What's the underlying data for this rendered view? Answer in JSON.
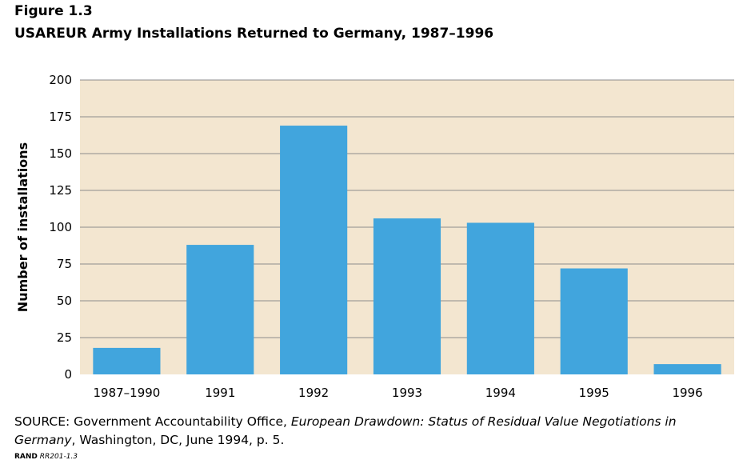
{
  "figure_number": "Figure 1.3",
  "title": "USAREUR Army Installations Returned to Germany, 1987–1996",
  "chart_data": {
    "type": "bar",
    "categories": [
      "1987–1990",
      "1991",
      "1992",
      "1993",
      "1994",
      "1995",
      "1996"
    ],
    "values": [
      18,
      88,
      169,
      106,
      103,
      72,
      7
    ],
    "ylabel": "Number of installations",
    "xlabel": "",
    "ylim": [
      0,
      200
    ],
    "yticks": [
      "0",
      "25",
      "50",
      "75",
      "100",
      "125",
      "150",
      "175",
      "200"
    ],
    "grid": true,
    "plot_background": "#f3e6d0",
    "bar_color": "#41a5dd",
    "grid_color": "#8c8c8c"
  },
  "source": {
    "prefix": "SOURCE: Government Accountability Office, ",
    "title_italic": "European Drawdown: Status of Residual Value Negotiations in Germany",
    "suffix": ", Washington, DC, June 1994, p. 5."
  },
  "credit": {
    "org": "RAND",
    "id": "RR201-1.3"
  }
}
